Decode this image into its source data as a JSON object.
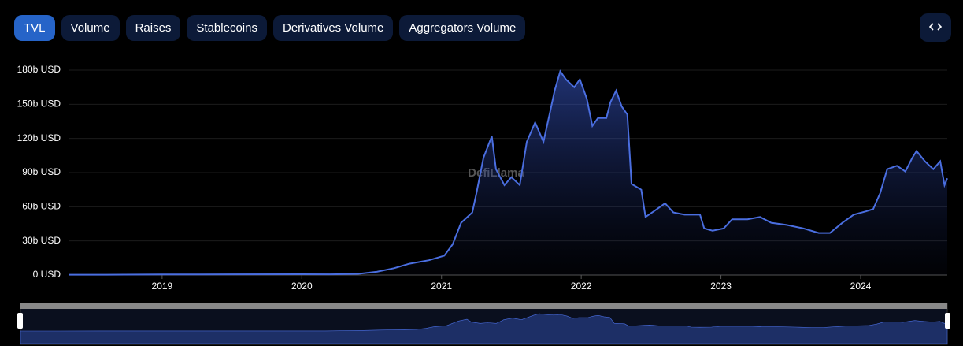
{
  "tabs": [
    "TVL",
    "Volume",
    "Raises",
    "Stablecoins",
    "Derivatives Volume",
    "Aggregators Volume"
  ],
  "active_tab": 0,
  "chart_data": {
    "type": "area",
    "watermark": "DefiLlama",
    "x": [
      2018.33,
      2018.6,
      2019.0,
      2019.5,
      2020.0,
      2020.2,
      2020.4,
      2020.54,
      2020.66,
      2020.77,
      2020.91,
      2021.02,
      2021.08,
      2021.14,
      2021.22,
      2021.25,
      2021.3,
      2021.36,
      2021.39,
      2021.45,
      2021.5,
      2021.56,
      2021.61,
      2021.67,
      2021.73,
      2021.78,
      2021.81,
      2021.85,
      2021.89,
      2021.95,
      2021.99,
      2022.04,
      2022.08,
      2022.12,
      2022.18,
      2022.21,
      2022.25,
      2022.29,
      2022.33,
      2022.36,
      2022.43,
      2022.46,
      2022.52,
      2022.6,
      2022.66,
      2022.74,
      2022.85,
      2022.88,
      2022.94,
      2023.02,
      2023.08,
      2023.19,
      2023.28,
      2023.36,
      2023.47,
      2023.59,
      2023.7,
      2023.78,
      2023.87,
      2023.95,
      2024.04,
      2024.09,
      2024.14,
      2024.19,
      2024.26,
      2024.32,
      2024.37,
      2024.4,
      2024.46,
      2024.52,
      2024.57,
      2024.6,
      2024.62
    ],
    "values": [
      0.3,
      0.3,
      0.5,
      0.6,
      0.7,
      0.6,
      1.0,
      3,
      6,
      10,
      13,
      17,
      27,
      46,
      55,
      72,
      103,
      122,
      93,
      79,
      86,
      79,
      117,
      134,
      117,
      145,
      162,
      179,
      172,
      165,
      172,
      155,
      131,
      138,
      138,
      152,
      162,
      148,
      141,
      80,
      75,
      51,
      56,
      63,
      55,
      53,
      53,
      41,
      39,
      41,
      49,
      49,
      51,
      46,
      44,
      41,
      37,
      37,
      46,
      53,
      56,
      58,
      72,
      93,
      96,
      91,
      103,
      109,
      100,
      93,
      100,
      79,
      85
    ],
    "color": "#4a6ee0",
    "xlim": [
      2018.33,
      2024.62
    ],
    "xticks": [
      2019,
      2020,
      2021,
      2022,
      2023,
      2024
    ],
    "ylim": [
      0,
      180
    ],
    "yticks": [
      {
        "value": 0,
        "label": "0 USD"
      },
      {
        "value": 30,
        "label": "30b USD"
      },
      {
        "value": 60,
        "label": "60b USD"
      },
      {
        "value": 90,
        "label": "90b USD"
      },
      {
        "value": 120,
        "label": "120b USD"
      },
      {
        "value": 150,
        "label": "150b USD"
      },
      {
        "value": 180,
        "label": "180b USD"
      }
    ],
    "grid": true
  }
}
